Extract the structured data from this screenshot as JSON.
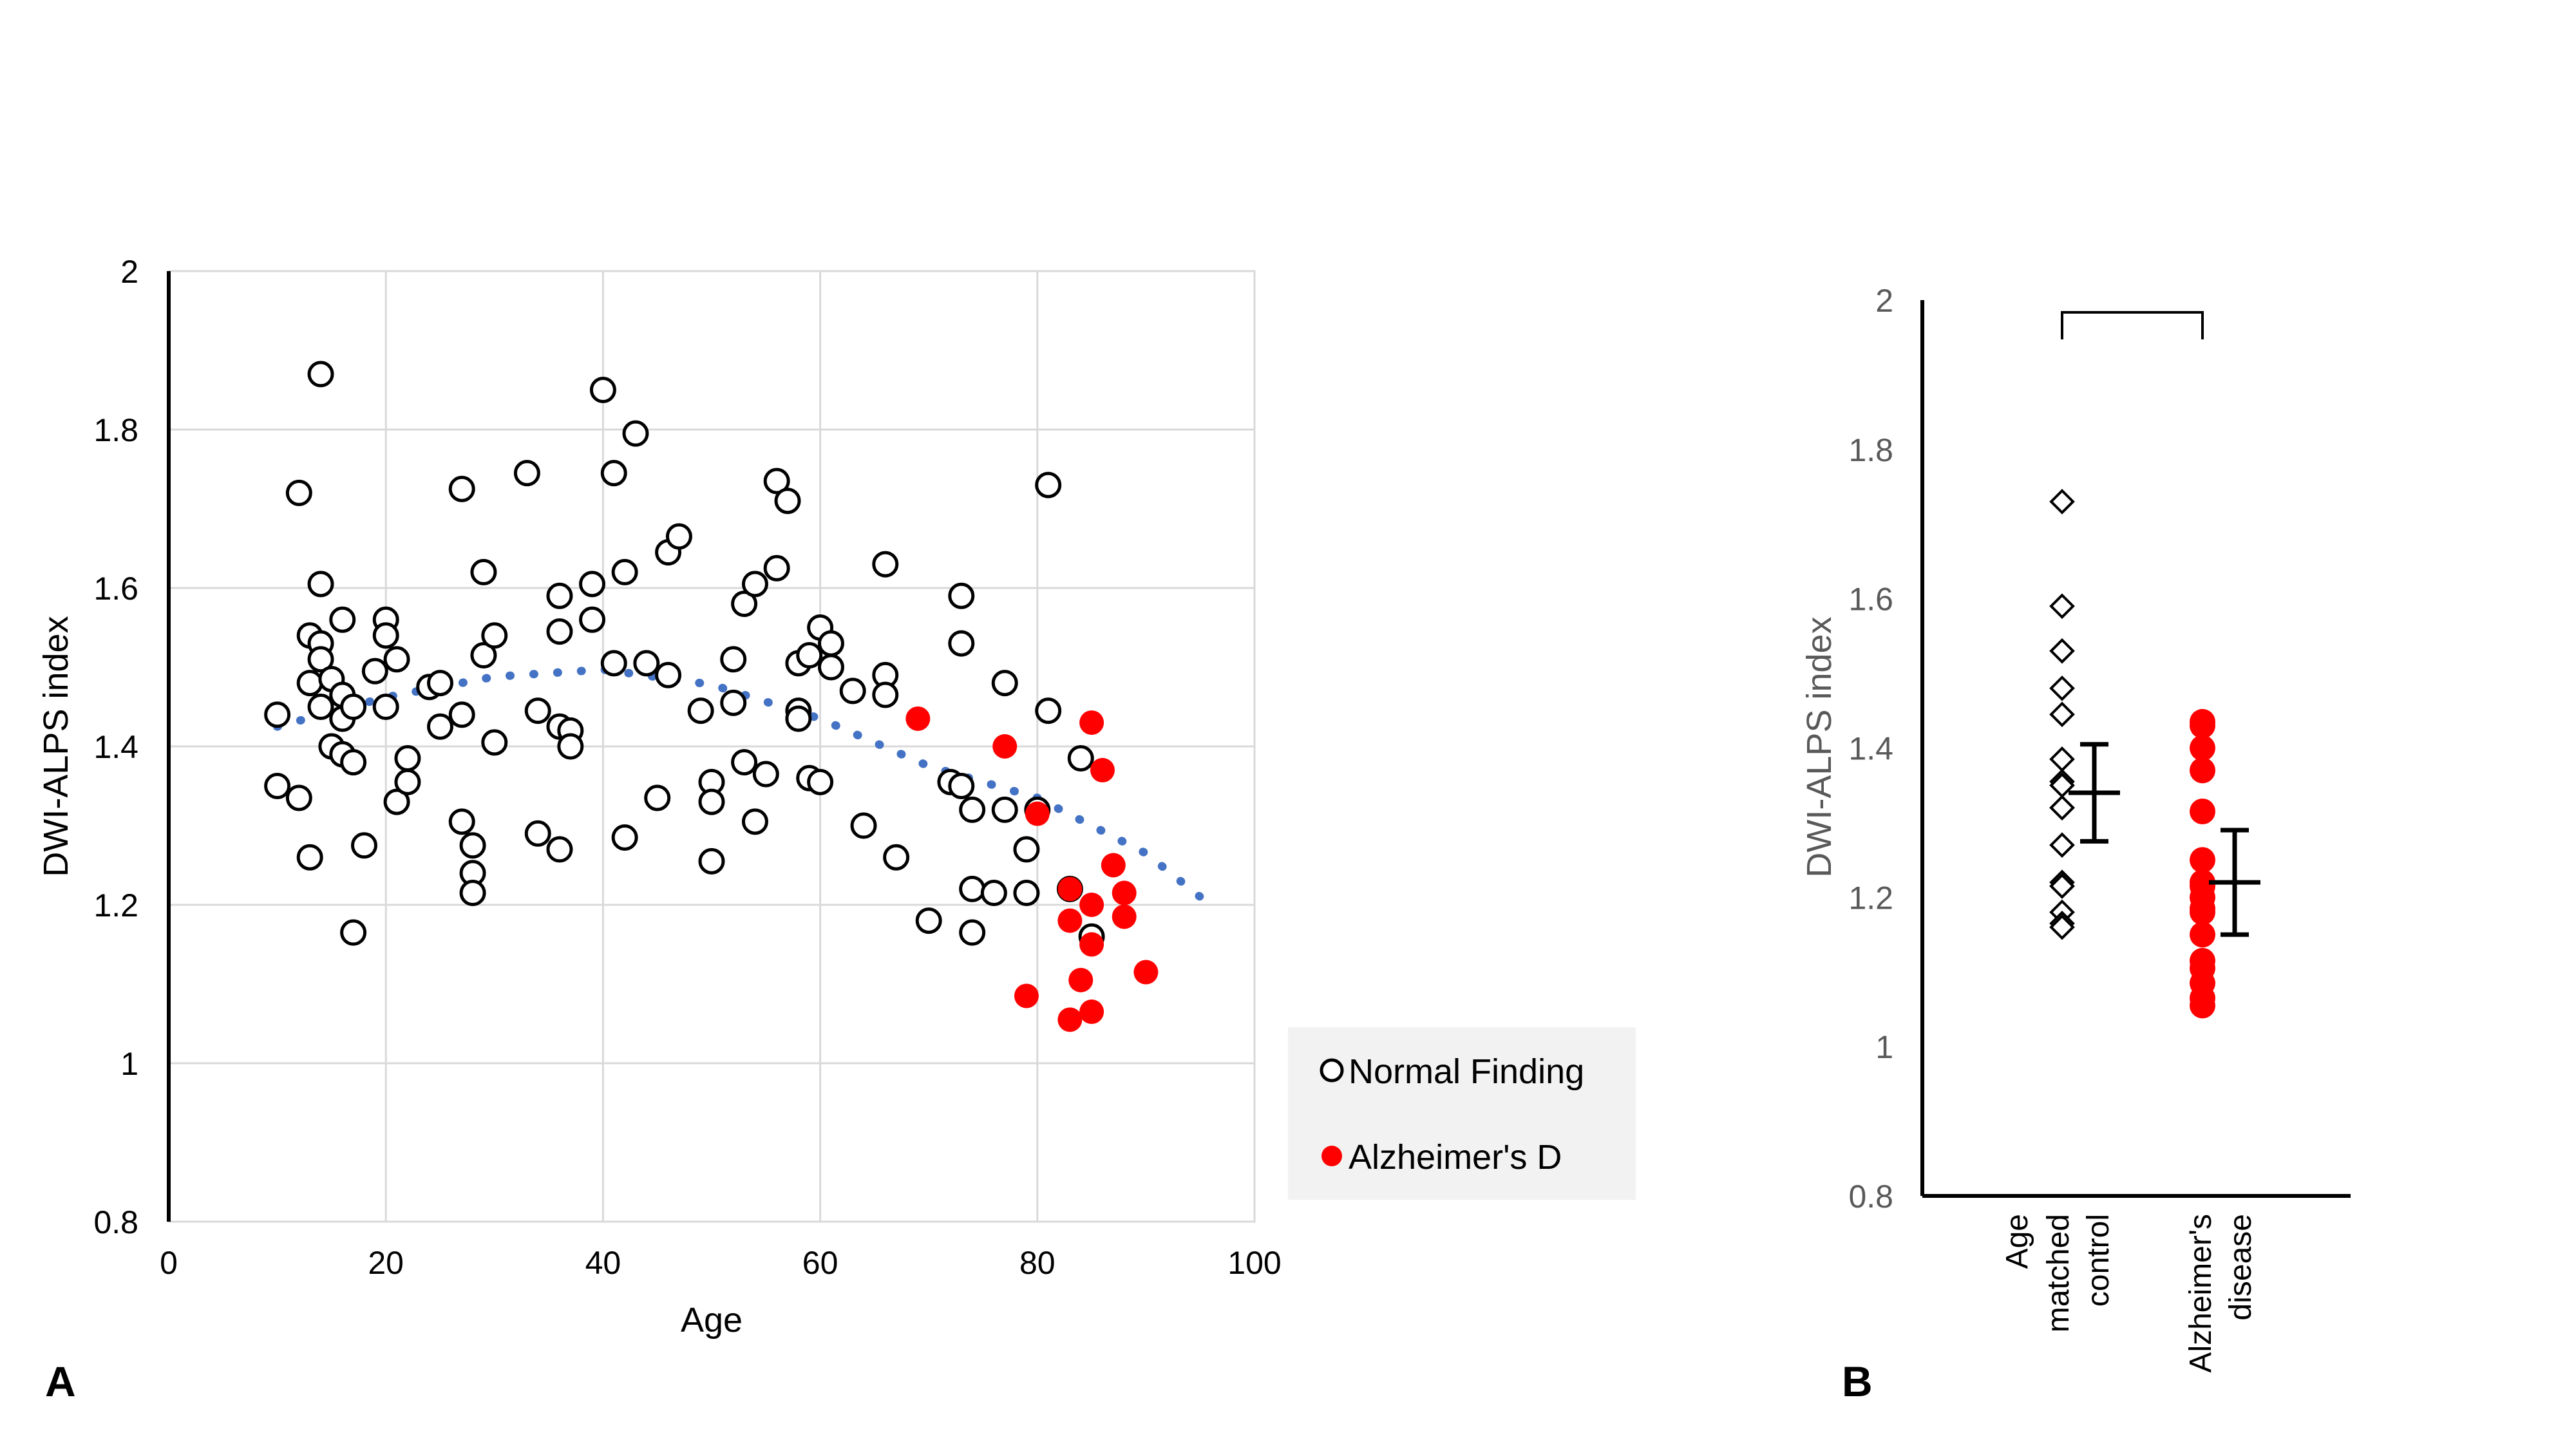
{
  "chart_data": [
    {
      "panel_label": "A",
      "type": "scatter",
      "xlabel": "Age",
      "ylabel": "DWI-ALPS index",
      "xlim": [
        0,
        100
      ],
      "ylim": [
        0.8,
        2.0
      ],
      "x_ticks": [
        "0",
        "20",
        "40",
        "60",
        "80",
        "100"
      ],
      "y_ticks": [
        "0.8",
        "1",
        "1.2",
        "1.4",
        "1.6",
        "1.8",
        "2"
      ],
      "grid": true,
      "legend_position": "right",
      "series": [
        {
          "name": "Normal Finding",
          "marker": "open-circle",
          "color": "#000000",
          "points": [
            [
              10,
              1.44
            ],
            [
              10,
              1.35
            ],
            [
              12,
              1.72
            ],
            [
              12,
              1.335
            ],
            [
              13,
              1.54
            ],
            [
              13,
              1.48
            ],
            [
              13,
              1.26
            ],
            [
              14,
              1.87
            ],
            [
              14,
              1.605
            ],
            [
              14,
              1.53
            ],
            [
              14,
              1.51
            ],
            [
              14,
              1.45
            ],
            [
              15,
              1.485
            ],
            [
              15,
              1.4
            ],
            [
              16,
              1.56
            ],
            [
              16,
              1.465
            ],
            [
              16,
              1.435
            ],
            [
              16,
              1.39
            ],
            [
              17,
              1.45
            ],
            [
              17,
              1.38
            ],
            [
              17,
              1.165
            ],
            [
              18,
              1.275
            ],
            [
              19,
              1.495
            ],
            [
              20,
              1.56
            ],
            [
              20,
              1.54
            ],
            [
              20,
              1.45
            ],
            [
              21,
              1.51
            ],
            [
              21,
              1.33
            ],
            [
              22,
              1.385
            ],
            [
              22,
              1.355
            ],
            [
              24,
              1.475
            ],
            [
              25,
              1.48
            ],
            [
              25,
              1.425
            ],
            [
              27,
              1.725
            ],
            [
              27,
              1.44
            ],
            [
              27,
              1.305
            ],
            [
              28,
              1.275
            ],
            [
              28,
              1.24
            ],
            [
              28,
              1.215
            ],
            [
              29,
              1.62
            ],
            [
              29,
              1.515
            ],
            [
              30,
              1.54
            ],
            [
              30,
              1.405
            ],
            [
              33,
              1.745
            ],
            [
              34,
              1.445
            ],
            [
              34,
              1.29
            ],
            [
              36,
              1.59
            ],
            [
              36,
              1.545
            ],
            [
              36,
              1.425
            ],
            [
              36,
              1.27
            ],
            [
              37,
              1.42
            ],
            [
              37,
              1.4
            ],
            [
              39,
              1.605
            ],
            [
              39,
              1.56
            ],
            [
              40,
              1.85
            ],
            [
              41,
              1.745
            ],
            [
              41,
              1.505
            ],
            [
              42,
              1.62
            ],
            [
              42,
              1.285
            ],
            [
              43,
              1.795
            ],
            [
              44,
              1.505
            ],
            [
              45,
              1.335
            ],
            [
              46,
              1.645
            ],
            [
              46,
              1.49
            ],
            [
              47,
              1.665
            ],
            [
              49,
              1.445
            ],
            [
              50,
              1.355
            ],
            [
              50,
              1.33
            ],
            [
              50,
              1.255
            ],
            [
              52,
              1.51
            ],
            [
              52,
              1.455
            ],
            [
              53,
              1.58
            ],
            [
              53,
              1.38
            ],
            [
              54,
              1.605
            ],
            [
              54,
              1.305
            ],
            [
              55,
              1.365
            ],
            [
              56,
              1.735
            ],
            [
              56,
              1.625
            ],
            [
              57,
              1.71
            ],
            [
              58,
              1.505
            ],
            [
              58,
              1.445
            ],
            [
              58,
              1.435
            ],
            [
              59,
              1.515
            ],
            [
              59,
              1.36
            ],
            [
              60,
              1.55
            ],
            [
              60,
              1.355
            ],
            [
              61,
              1.53
            ],
            [
              61,
              1.5
            ],
            [
              63,
              1.47
            ],
            [
              64,
              1.3
            ],
            [
              66,
              1.63
            ],
            [
              66,
              1.49
            ],
            [
              66,
              1.465
            ],
            [
              67,
              1.26
            ],
            [
              70,
              1.18
            ],
            [
              72,
              1.355
            ],
            [
              73,
              1.59
            ],
            [
              73,
              1.53
            ],
            [
              73,
              1.35
            ],
            [
              74,
              1.32
            ],
            [
              74,
              1.22
            ],
            [
              74,
              1.165
            ],
            [
              76,
              1.215
            ],
            [
              77,
              1.48
            ],
            [
              77,
              1.32
            ],
            [
              79,
              1.27
            ],
            [
              79,
              1.215
            ],
            [
              80,
              1.32
            ],
            [
              81,
              1.73
            ],
            [
              81,
              1.445
            ],
            [
              83,
              1.22
            ],
            [
              84,
              1.385
            ],
            [
              85,
              1.16
            ]
          ]
        },
        {
          "name": "Alzheimer's D",
          "marker": "filled-circle",
          "color": "#ff0000",
          "points": [
            [
              69,
              1.435
            ],
            [
              77,
              1.4
            ],
            [
              79,
              1.085
            ],
            [
              80,
              1.315
            ],
            [
              83,
              1.22
            ],
            [
              83,
              1.18
            ],
            [
              83,
              1.055
            ],
            [
              84,
              1.105
            ],
            [
              85,
              1.43
            ],
            [
              85,
              1.2
            ],
            [
              85,
              1.15
            ],
            [
              85,
              1.065
            ],
            [
              86,
              1.37
            ],
            [
              87,
              1.25
            ],
            [
              88,
              1.215
            ],
            [
              88,
              1.185
            ],
            [
              90,
              1.115
            ]
          ]
        },
        {
          "name": "trend",
          "style": "dotted-polynomial",
          "color": "#4472c4",
          "points": [
            [
              10,
              1.425
            ],
            [
              20,
              1.462
            ],
            [
              30,
              1.488
            ],
            [
              40,
              1.497
            ],
            [
              50,
              1.478
            ],
            [
              60,
              1.435
            ],
            [
              70,
              1.375
            ],
            [
              80,
              1.335
            ],
            [
              90,
              1.265
            ],
            [
              95,
              1.21
            ]
          ]
        }
      ]
    },
    {
      "panel_label": "B",
      "type": "scatter",
      "xlabel": "",
      "ylabel": "DWI-ALPS index",
      "ylim": [
        0.8,
        2.0
      ],
      "y_ticks": [
        "0.8",
        "1",
        "1.2",
        "1.4",
        "1.6",
        "1.8",
        "2"
      ],
      "grid": false,
      "categories": [
        "Age matched control",
        "Alzheimer's disease"
      ],
      "category_label_lines": [
        [
          "Age",
          "matched",
          "control"
        ],
        [
          "Alzheimer's",
          "disease"
        ]
      ],
      "significance_bracket": [
        "Age matched control",
        "Alzheimer's disease"
      ],
      "series": [
        {
          "name": "Age matched control",
          "marker": "open-diamond",
          "color": "#000000",
          "values": [
            1.73,
            1.59,
            1.53,
            1.48,
            1.445,
            1.385,
            1.355,
            1.35,
            1.32,
            1.32,
            1.27,
            1.22,
            1.215,
            1.215,
            1.18,
            1.165,
            1.16
          ],
          "mean": 1.34,
          "error": [
            1.275,
            1.405
          ]
        },
        {
          "name": "Alzheimer's disease",
          "marker": "filled-circle",
          "color": "#ff0000",
          "values": [
            1.435,
            1.43,
            1.4,
            1.37,
            1.315,
            1.25,
            1.22,
            1.215,
            1.2,
            1.185,
            1.18,
            1.15,
            1.115,
            1.105,
            1.085,
            1.065,
            1.055
          ],
          "mean": 1.22,
          "error": [
            1.15,
            1.29
          ]
        }
      ]
    }
  ]
}
